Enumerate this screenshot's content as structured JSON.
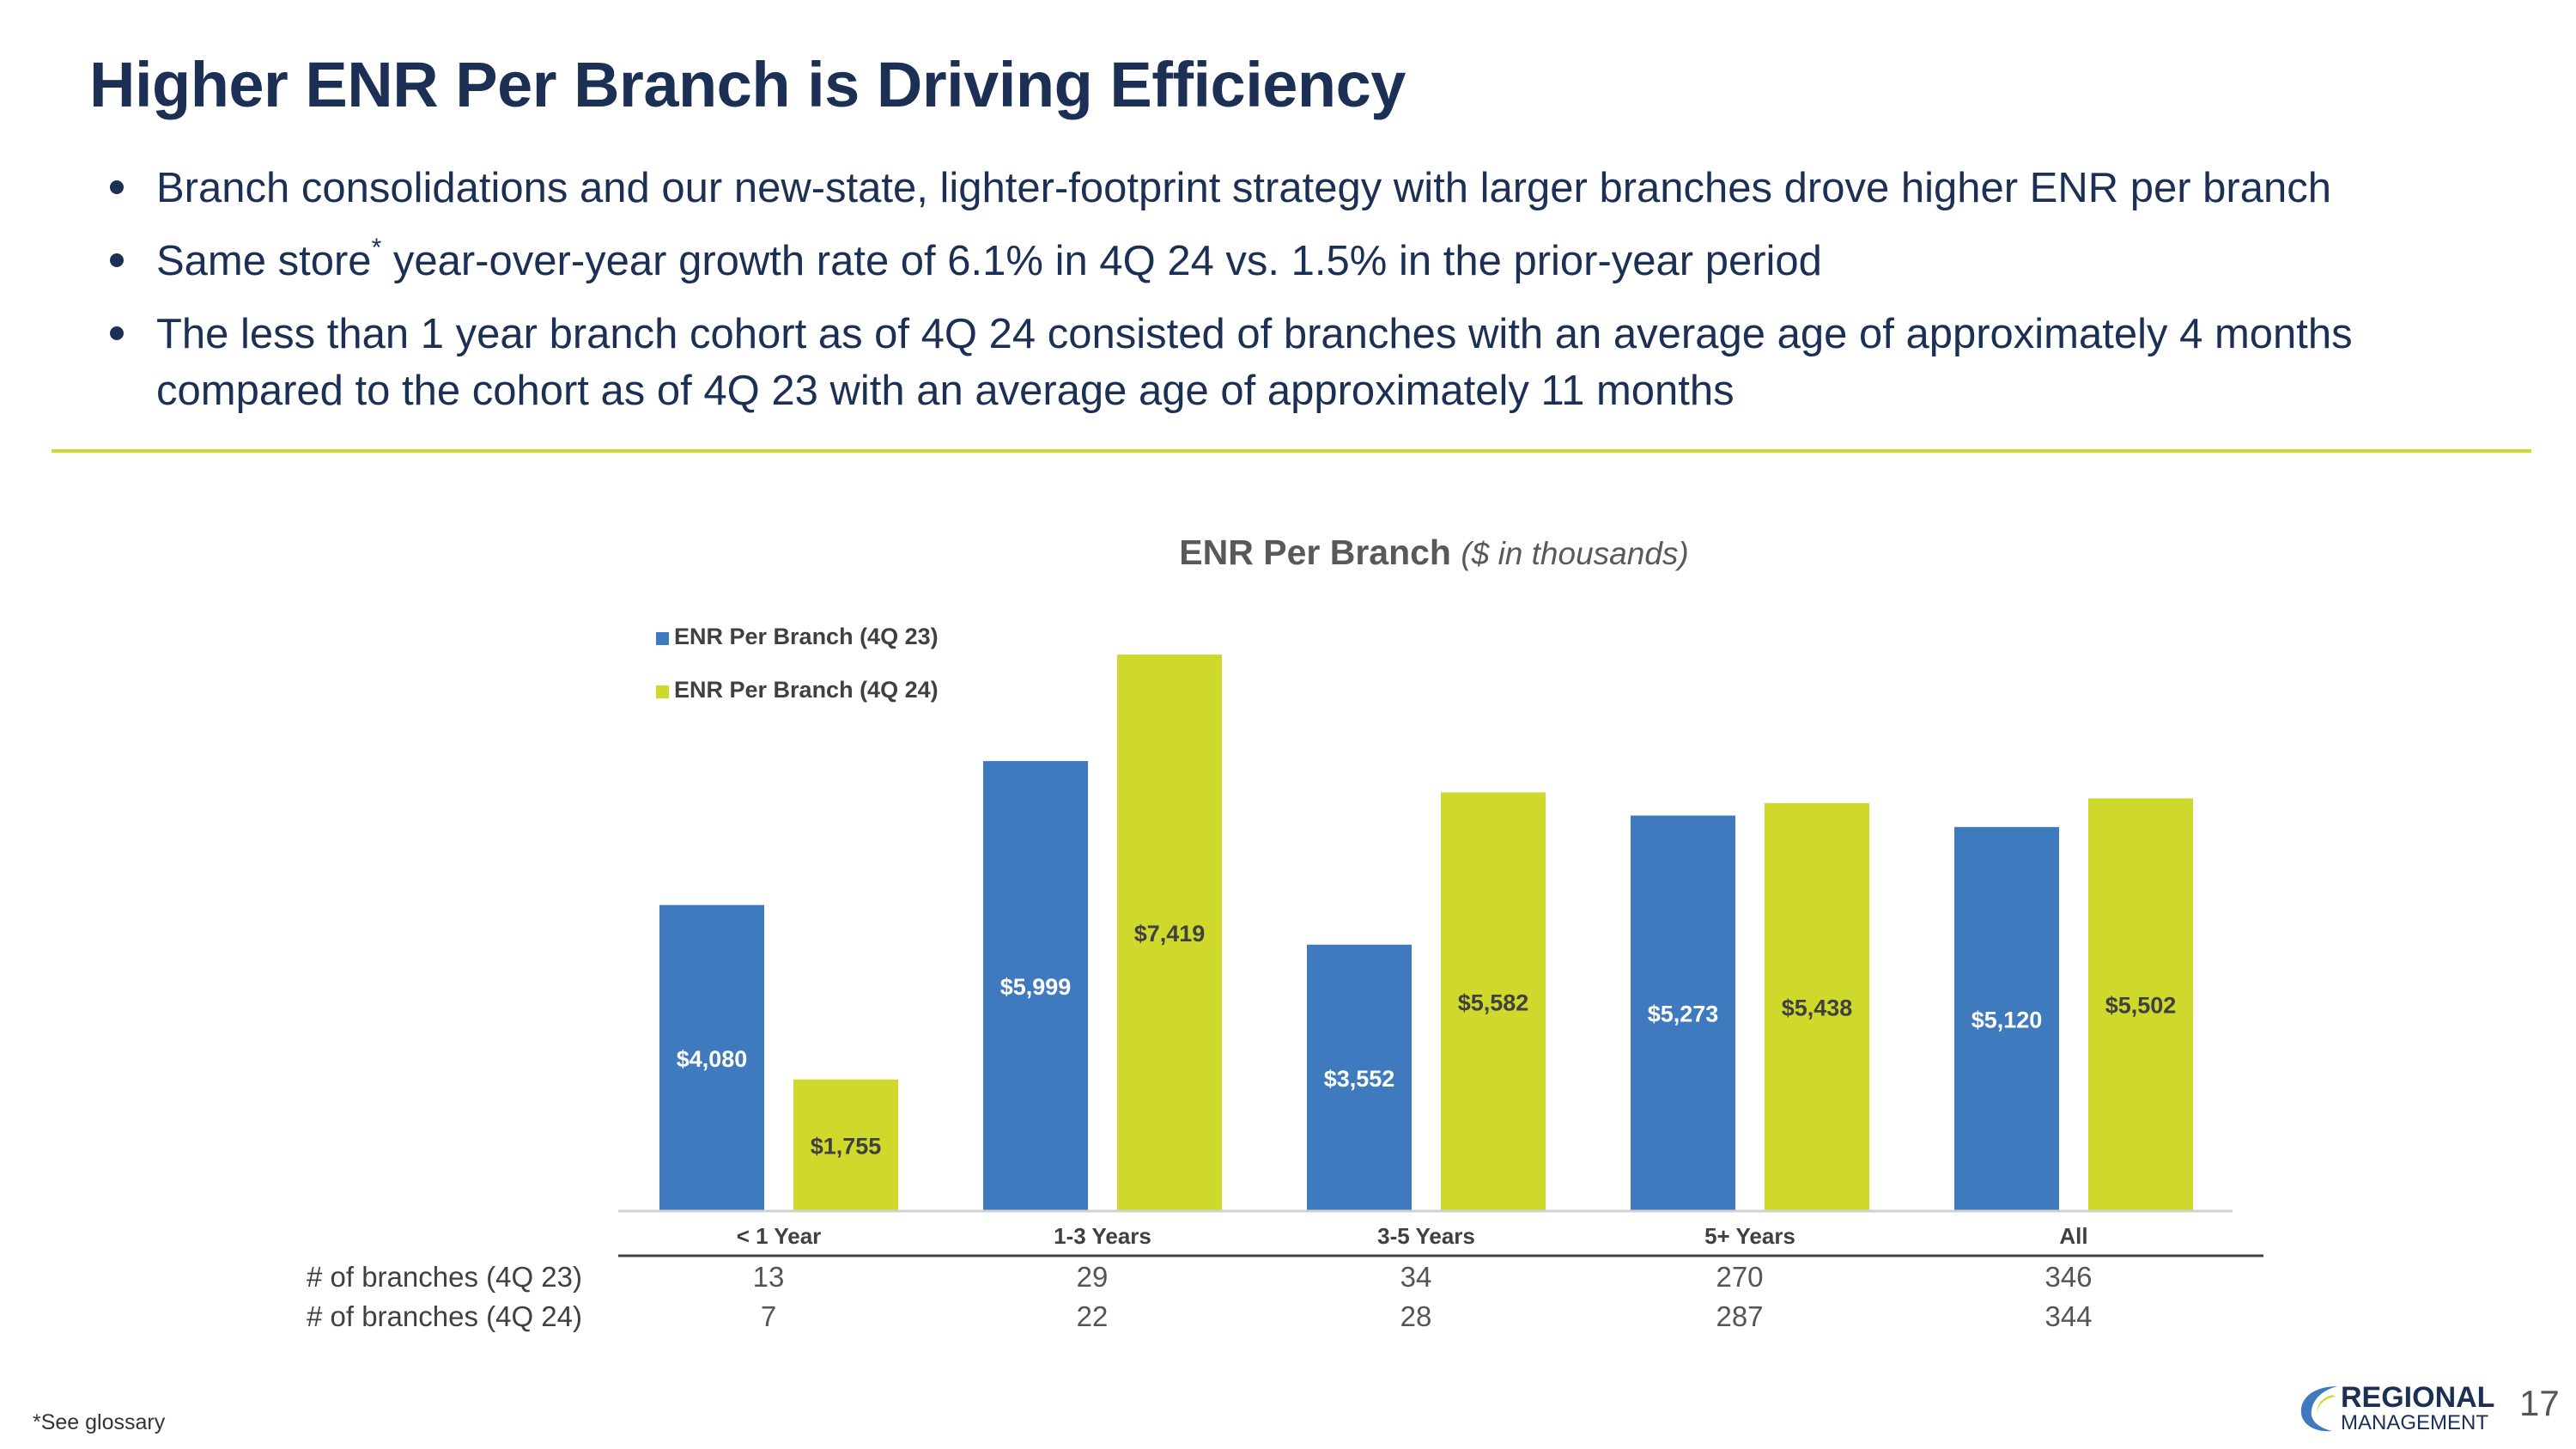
{
  "title": "Higher ENR Per Branch is Driving Efficiency",
  "bullets": [
    {
      "text": "Branch consolidations and our new-state, lighter-footprint strategy with larger branches drove higher ENR per branch"
    },
    {
      "pre": "Same store",
      "sup": "*",
      "post": " year-over-year growth rate of 6.1% in 4Q 24 vs. 1.5% in the prior-year period"
    },
    {
      "text": "The less than 1 year branch cohort as of 4Q 24 consisted of branches with an average age of approximately 4 months compared to the cohort as of 4Q 23 with an average age of approximately 11 months"
    }
  ],
  "chart_title": {
    "main": "ENR Per Branch",
    "unit": "($ in thousands)"
  },
  "colors": {
    "series_4q23": "#3f7abf",
    "series_4q24": "#cfd92b",
    "title": "#1c2f55",
    "rule": "#cfd92b"
  },
  "chart_data": {
    "type": "bar",
    "title": "ENR Per Branch ($ in thousands)",
    "categories": [
      "< 1 Year",
      "1-3 Years",
      "3-5 Years",
      "5+ Years",
      "All"
    ],
    "series": [
      {
        "name": "ENR Per Branch (4Q 23)",
        "values": [
          4080,
          5999,
          3552,
          5273,
          5120
        ],
        "labels": [
          "$4,080",
          "$5,999",
          "$3,552",
          "$5,273",
          "$5,120"
        ],
        "color": "#3f7abf"
      },
      {
        "name": "ENR Per Branch (4Q 24)",
        "values": [
          1755,
          7419,
          5582,
          5438,
          5502
        ],
        "labels": [
          "$1,755",
          "$7,419",
          "$5,582",
          "$5,438",
          "$5,502"
        ],
        "color": "#cfd92b"
      }
    ],
    "ylim": [
      0,
      7500
    ],
    "legend": "top-left",
    "grid": false
  },
  "table": {
    "rows": [
      {
        "label": "# of branches (4Q 23)",
        "values": [
          "13",
          "29",
          "34",
          "270",
          "346"
        ]
      },
      {
        "label": "# of branches (4Q 24)",
        "values": [
          "7",
          "22",
          "28",
          "287",
          "344"
        ]
      }
    ]
  },
  "footnote": "*See glossary",
  "logo": {
    "line1": "REGIONAL",
    "line2": "MANAGEMENT"
  },
  "page_number": "17"
}
